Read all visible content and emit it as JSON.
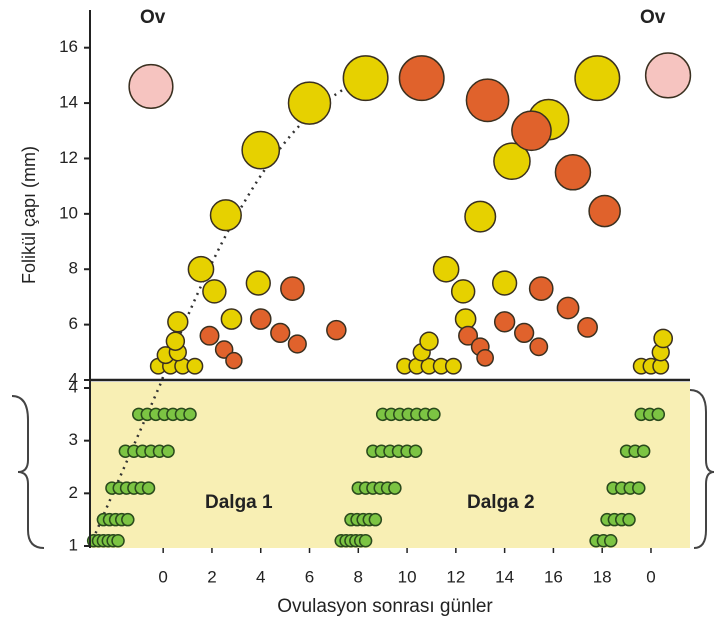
{
  "chart_data": [
    {
      "type": "scatter",
      "y_label": "Folikül çapı (mm)",
      "xlim": [
        -3,
        21.6
      ],
      "ylim": [
        4,
        17
      ],
      "yticks": [
        4,
        6,
        8,
        10,
        12,
        14,
        16
      ],
      "annotations": [
        "Ov",
        "Ov"
      ],
      "series": [
        {
          "color": "#e6d100",
          "x": [
            0.6,
            1.55,
            2.57,
            4.0,
            6.0,
            8.3,
            2.1,
            2.8,
            3.9,
            11.6,
            12.3,
            13.0,
            14.3,
            15.8,
            17.8,
            12.4,
            14.0,
            -0.2,
            0.3,
            0.8,
            1.3,
            0.1,
            0.6,
            0.5,
            9.9,
            10.4,
            10.9,
            11.4,
            11.9,
            10.6,
            10.9,
            19.6,
            20.0,
            20.4,
            20.4,
            20.5
          ],
          "values": [
            6.1,
            8.0,
            9.95,
            12.3,
            14.0,
            14.9,
            7.2,
            6.2,
            7.5,
            8.0,
            7.2,
            9.9,
            11.9,
            13.4,
            14.9,
            6.2,
            7.5,
            4.5,
            4.5,
            4.5,
            4.5,
            4.9,
            5.0,
            5.4,
            4.5,
            4.5,
            4.5,
            4.5,
            4.5,
            5.0,
            5.4,
            4.5,
            4.5,
            4.5,
            5.0,
            5.5
          ]
        },
        {
          "color": "#e0622c",
          "x": [
            10.6,
            13.3,
            15.1,
            16.8,
            18.1,
            5.3,
            4.0,
            4.8,
            5.5,
            7.1,
            1.9,
            2.5,
            2.9,
            15.5,
            14.0,
            14.8,
            16.6,
            15.4,
            17.4,
            12.5,
            13.0,
            13.2
          ],
          "values": [
            14.9,
            14.1,
            13.0,
            11.5,
            10.1,
            7.3,
            6.2,
            5.7,
            5.3,
            5.8,
            5.6,
            5.1,
            4.7,
            7.3,
            6.1,
            5.7,
            6.6,
            5.2,
            5.9,
            5.6,
            5.2,
            4.8
          ]
        },
        {
          "color": "#f6c4c0",
          "x": [
            -0.5,
            20.7
          ],
          "values": [
            14.6,
            15.0
          ]
        }
      ]
    },
    {
      "type": "scatter",
      "x_label": "Ovulasyon sonrası günler",
      "xlim": [
        -3,
        21.6
      ],
      "ylim": [
        1,
        4
      ],
      "yticks": [
        1,
        2,
        3,
        4
      ],
      "xticks": [
        0,
        2,
        4,
        6,
        8,
        10,
        12,
        14,
        16,
        {
          "value": 18,
          "label": "18"
        },
        {
          "value": 20,
          "label": "0"
        }
      ],
      "annotations": [
        "Dalga 1",
        "Dalga 2"
      ],
      "series": [
        {
          "color": "#7cc443",
          "x": [
            -1.0,
            -0.65,
            -0.3,
            0.05,
            0.4,
            0.75,
            1.1,
            -1.55,
            -1.2,
            -0.85,
            -0.5,
            -0.15,
            0.2,
            -2.1,
            -1.8,
            -1.5,
            -1.2,
            -0.9,
            -0.6,
            -2.45,
            -2.2,
            -1.95,
            -1.7,
            -1.45,
            -2.85,
            -2.65,
            -2.45,
            -2.25,
            -2.05,
            -1.85,
            9.0,
            9.35,
            9.7,
            10.05,
            10.4,
            10.75,
            11.1,
            8.6,
            8.95,
            9.3,
            9.65,
            10.0,
            10.35,
            8.0,
            8.3,
            8.6,
            8.9,
            9.2,
            9.5,
            7.7,
            7.95,
            8.2,
            8.45,
            8.7,
            7.3,
            7.5,
            7.7,
            7.9,
            8.1,
            8.3,
            19.6,
            19.95,
            20.3,
            19.0,
            19.35,
            19.7,
            18.45,
            18.8,
            19.15,
            19.5,
            18.2,
            18.5,
            18.8,
            19.1,
            17.75,
            18.05,
            18.35
          ],
          "values": [
            3.5,
            3.5,
            3.5,
            3.5,
            3.5,
            3.5,
            3.5,
            2.8,
            2.8,
            2.8,
            2.8,
            2.8,
            2.8,
            2.1,
            2.1,
            2.1,
            2.1,
            2.1,
            2.1,
            1.5,
            1.5,
            1.5,
            1.5,
            1.5,
            1.1,
            1.1,
            1.1,
            1.1,
            1.1,
            1.1,
            3.5,
            3.5,
            3.5,
            3.5,
            3.5,
            3.5,
            3.5,
            2.8,
            2.8,
            2.8,
            2.8,
            2.8,
            2.8,
            2.1,
            2.1,
            2.1,
            2.1,
            2.1,
            2.1,
            1.5,
            1.5,
            1.5,
            1.5,
            1.5,
            1.1,
            1.1,
            1.1,
            1.1,
            1.1,
            1.1,
            3.5,
            3.5,
            3.5,
            2.8,
            2.8,
            2.8,
            2.1,
            2.1,
            2.1,
            2.1,
            1.5,
            1.5,
            1.5,
            1.5,
            1.1,
            1.1,
            1.1
          ]
        }
      ]
    }
  ]
}
